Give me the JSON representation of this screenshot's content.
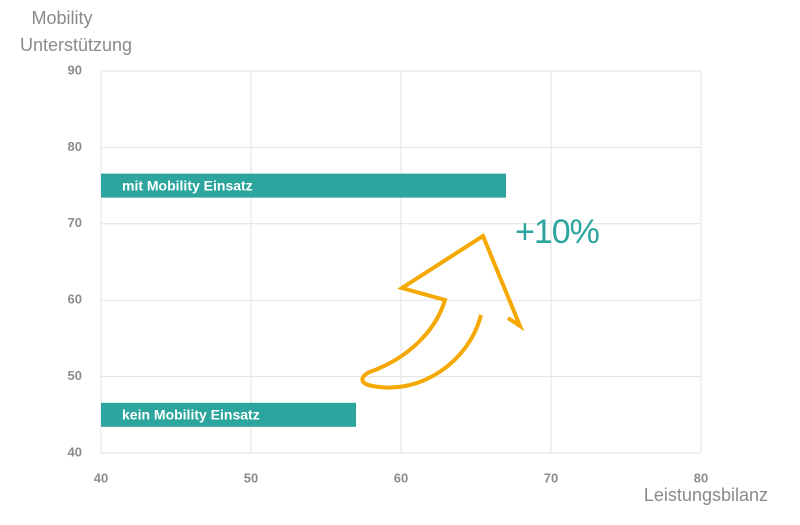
{
  "chart_data": {
    "type": "hbar-positioned",
    "ylabel": [
      "Mobility",
      "Unterstützung"
    ],
    "xlabel": "Leistungsbilanz",
    "categories": [
      "mit Mobility Einsatz",
      "kein Mobility Einsatz"
    ],
    "values": [
      67,
      57
    ],
    "y": [
      75,
      45
    ],
    "color": "#2ba59d",
    "xlim": [
      40,
      80
    ],
    "xticks": [
      40,
      50,
      60,
      70,
      80
    ],
    "ylim": [
      40,
      90
    ],
    "yticks": [
      40,
      50,
      60,
      70,
      80,
      90
    ],
    "grid": true,
    "annotation": "+10%"
  }
}
